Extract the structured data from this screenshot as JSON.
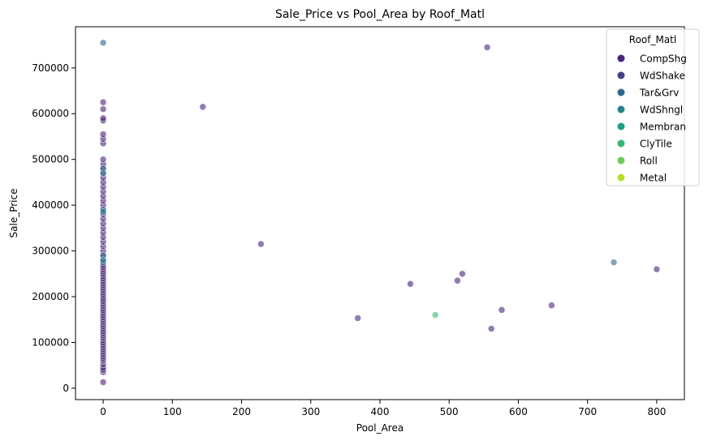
{
  "chart_data": {
    "type": "scatter",
    "title": "Sale_Price vs Pool_Area by Roof_Matl",
    "xlabel": "Pool_Area",
    "ylabel": "Sale_Price",
    "xlim": [
      -40,
      840
    ],
    "ylim": [
      -25000,
      790000
    ],
    "x_ticks": [
      0,
      100,
      200,
      300,
      400,
      500,
      600,
      700,
      800
    ],
    "y_ticks": [
      0,
      100000,
      200000,
      300000,
      400000,
      500000,
      600000,
      700000
    ],
    "legend": {
      "title": "Roof_Matl",
      "placement": "top-right",
      "entries": [
        {
          "name": "CompShg",
          "color": "#482576"
        },
        {
          "name": "WdShake",
          "color": "#414487"
        },
        {
          "name": "Tar&Grv",
          "color": "#31688e"
        },
        {
          "name": "WdShngl",
          "color": "#26828e"
        },
        {
          "name": "Membran",
          "color": "#1f9e89"
        },
        {
          "name": "ClyTile",
          "color": "#35b779"
        },
        {
          "name": "Roll",
          "color": "#6ece58"
        },
        {
          "name": "Metal",
          "color": "#b5de2b"
        }
      ]
    },
    "series": [
      {
        "name": "CompShg",
        "points": [
          [
            0,
            13000
          ],
          [
            0,
            35000
          ],
          [
            0,
            40000
          ],
          [
            0,
            45000
          ],
          [
            0,
            52000
          ],
          [
            0,
            60000
          ],
          [
            0,
            65000
          ],
          [
            0,
            70000
          ],
          [
            0,
            75000
          ],
          [
            0,
            80000
          ],
          [
            0,
            85000
          ],
          [
            0,
            90000
          ],
          [
            0,
            95000
          ],
          [
            0,
            100000
          ],
          [
            0,
            105000
          ],
          [
            0,
            110000
          ],
          [
            0,
            115000
          ],
          [
            0,
            120000
          ],
          [
            0,
            125000
          ],
          [
            0,
            130000
          ],
          [
            0,
            135000
          ],
          [
            0,
            140000
          ],
          [
            0,
            145000
          ],
          [
            0,
            150000
          ],
          [
            0,
            155000
          ],
          [
            0,
            160000
          ],
          [
            0,
            165000
          ],
          [
            0,
            170000
          ],
          [
            0,
            175000
          ],
          [
            0,
            180000
          ],
          [
            0,
            185000
          ],
          [
            0,
            190000
          ],
          [
            0,
            195000
          ],
          [
            0,
            200000
          ],
          [
            0,
            205000
          ],
          [
            0,
            210000
          ],
          [
            0,
            215000
          ],
          [
            0,
            220000
          ],
          [
            0,
            225000
          ],
          [
            0,
            230000
          ],
          [
            0,
            235000
          ],
          [
            0,
            240000
          ],
          [
            0,
            245000
          ],
          [
            0,
            250000
          ],
          [
            0,
            255000
          ],
          [
            0,
            260000
          ],
          [
            0,
            265000
          ],
          [
            0,
            270000
          ],
          [
            0,
            280000
          ],
          [
            0,
            290000
          ],
          [
            0,
            300000
          ],
          [
            0,
            310000
          ],
          [
            0,
            320000
          ],
          [
            0,
            330000
          ],
          [
            0,
            340000
          ],
          [
            0,
            350000
          ],
          [
            0,
            360000
          ],
          [
            0,
            370000
          ],
          [
            0,
            380000
          ],
          [
            0,
            390000
          ],
          [
            0,
            400000
          ],
          [
            0,
            410000
          ],
          [
            0,
            420000
          ],
          [
            0,
            430000
          ],
          [
            0,
            440000
          ],
          [
            0,
            450000
          ],
          [
            0,
            460000
          ],
          [
            0,
            470000
          ],
          [
            0,
            480000
          ],
          [
            0,
            490000
          ],
          [
            0,
            500000
          ],
          [
            0,
            535000
          ],
          [
            0,
            545000
          ],
          [
            0,
            555000
          ],
          [
            0,
            585000
          ],
          [
            0,
            590000
          ],
          [
            0,
            610000
          ],
          [
            0,
            625000
          ],
          [
            144,
            615000
          ],
          [
            228,
            315000
          ],
          [
            368,
            153000
          ],
          [
            444,
            228000
          ],
          [
            512,
            235000
          ],
          [
            519,
            250000
          ],
          [
            555,
            745000
          ],
          [
            561,
            130000
          ],
          [
            576,
            171000
          ],
          [
            648,
            181000
          ],
          [
            800,
            260000
          ]
        ]
      },
      {
        "name": "Tar&Grv",
        "points": [
          [
            0,
            755000
          ],
          [
            0,
            480000
          ],
          [
            0,
            390000
          ],
          [
            0,
            290000
          ],
          [
            0,
            275000
          ],
          [
            738,
            275000
          ]
        ]
      },
      {
        "name": "WdShngl",
        "points": [
          [
            0,
            470000
          ],
          [
            0,
            385000
          ],
          [
            0,
            280000
          ]
        ]
      },
      {
        "name": "ClyTile",
        "points": [
          [
            480,
            160000
          ]
        ]
      }
    ]
  }
}
